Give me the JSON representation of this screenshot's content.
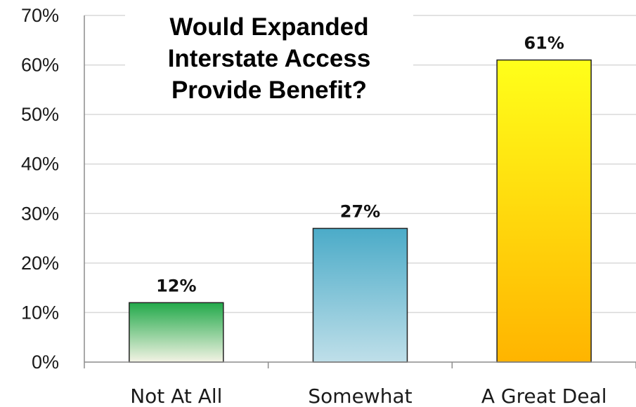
{
  "chart_data": {
    "type": "bar",
    "title_lines": [
      "Would Expanded",
      "Interstate Access",
      "Provide Benefit?"
    ],
    "categories": [
      "Not At All",
      "Somewhat",
      "A Great Deal"
    ],
    "values": [
      12,
      27,
      61
    ],
    "data_labels": [
      "12%",
      "27%",
      "61%"
    ],
    "ylim": [
      0,
      70
    ],
    "yticks": [
      0,
      10,
      20,
      30,
      40,
      50,
      60,
      70
    ],
    "ytick_labels": [
      "0%",
      "10%",
      "20%",
      "30%",
      "40%",
      "50%",
      "60%",
      "70%"
    ],
    "grid": true,
    "legend": "none",
    "bar_colors": [
      {
        "top": "#22a94a",
        "bottom": "#f3f3e4"
      },
      {
        "top": "#4babc8",
        "bottom": "#bfdfe9"
      },
      {
        "top": "#ffff1a",
        "bottom": "#ffb400"
      }
    ],
    "bar_stroke": "#222222",
    "grid_color": "#d9d9d9",
    "axis_color": "#8c8c8c"
  }
}
